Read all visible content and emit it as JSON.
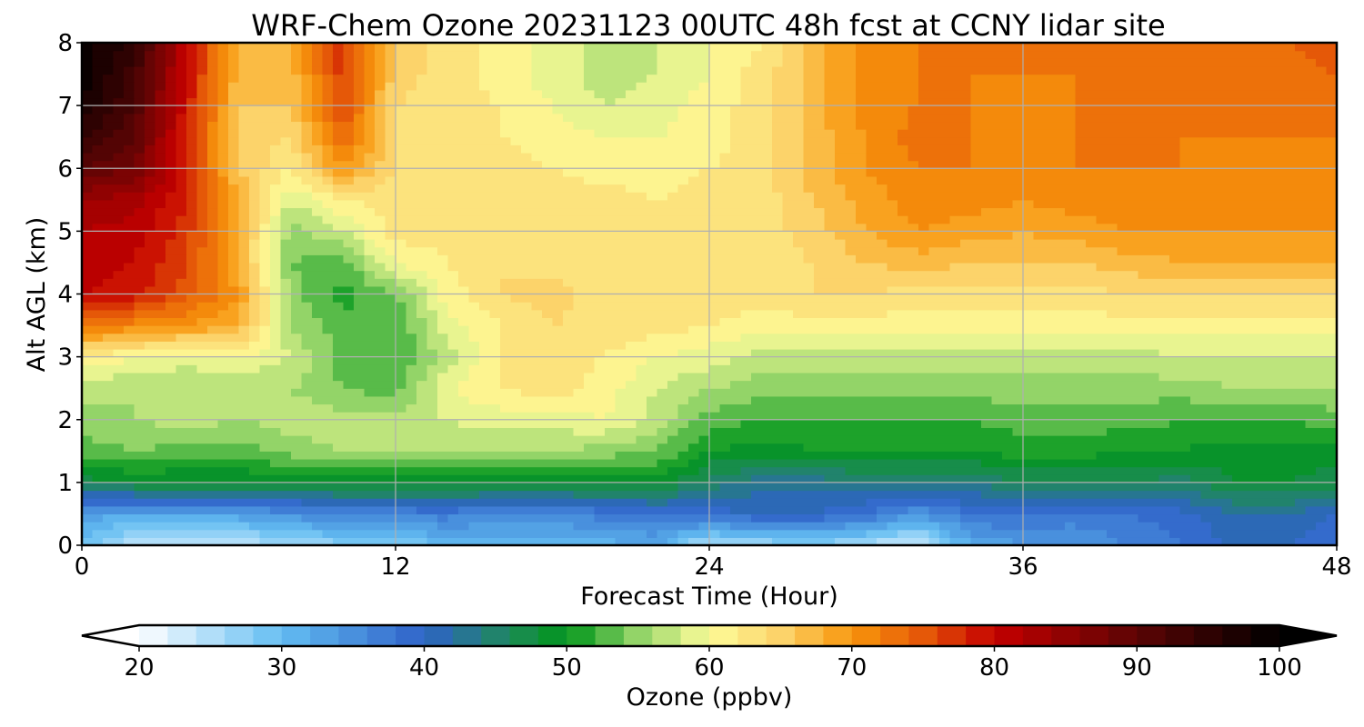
{
  "chart_data": {
    "type": "heatmap",
    "title": "WRF-Chem Ozone  20231123 00UTC 48h fcst at CCNY lidar site",
    "xlabel": "Forecast Time (Hour)",
    "ylabel": "Alt AGL (km)",
    "xlim": [
      0,
      48
    ],
    "ylim": [
      0,
      8
    ],
    "xticks": [
      0,
      12,
      24,
      36,
      48
    ],
    "yticks": [
      0,
      1,
      2,
      3,
      4,
      5,
      6,
      7,
      8
    ],
    "grid": true,
    "colorbar": {
      "label": "Ozone  (ppbv)",
      "range": [
        20,
        100
      ],
      "ticks": [
        20,
        30,
        40,
        50,
        60,
        70,
        80,
        90,
        100
      ],
      "extend": "both",
      "stops": [
        {
          "v": 20,
          "c": "#ffffff"
        },
        {
          "v": 30,
          "c": "#63bdf2"
        },
        {
          "v": 40,
          "c": "#2f62c8"
        },
        {
          "v": 46,
          "c": "#1e8a5a"
        },
        {
          "v": 50,
          "c": "#00961a"
        },
        {
          "v": 55,
          "c": "#93d468"
        },
        {
          "v": 60,
          "c": "#fdfc9a"
        },
        {
          "v": 65,
          "c": "#fcd36a"
        },
        {
          "v": 70,
          "c": "#f8960c"
        },
        {
          "v": 75,
          "c": "#e55808"
        },
        {
          "v": 80,
          "c": "#c40000"
        },
        {
          "v": 90,
          "c": "#5c0404"
        },
        {
          "v": 100,
          "c": "#000000"
        }
      ]
    },
    "x": [
      0,
      2,
      4,
      6,
      8,
      10,
      12,
      14,
      16,
      18,
      20,
      22,
      24,
      26,
      28,
      30,
      32,
      34,
      36,
      38,
      40,
      42,
      44,
      46,
      48
    ],
    "y": [
      0,
      0.5,
      1,
      1.5,
      2,
      2.5,
      3,
      3.5,
      4,
      4.5,
      5,
      5.5,
      6,
      6.5,
      7,
      7.5,
      8
    ],
    "z": [
      [
        29,
        24,
        25,
        24,
        26,
        27,
        28,
        30,
        31,
        31,
        31,
        32,
        24,
        26,
        27,
        25,
        23,
        32,
        34,
        34,
        36,
        38,
        40,
        40,
        38
      ],
      [
        33,
        32,
        33,
        33,
        35,
        36,
        36,
        37,
        35,
        35,
        37,
        38,
        39,
        40,
        40,
        38,
        34,
        38,
        38,
        37,
        38,
        39,
        42,
        42,
        40
      ],
      [
        47,
        48,
        48,
        48,
        48,
        49,
        49,
        49,
        49,
        49,
        49,
        49,
        45,
        43,
        43,
        44,
        44,
        44,
        46,
        46,
        46,
        45,
        48,
        48,
        47
      ],
      [
        53,
        54,
        53,
        53,
        55,
        56,
        56,
        57,
        56,
        56,
        55,
        54,
        50,
        49,
        50,
        50,
        50,
        50,
        51,
        51,
        50,
        50,
        49,
        49,
        49
      ],
      [
        55,
        56,
        57,
        56,
        57,
        57,
        57,
        58,
        59,
        59,
        60,
        57,
        53,
        52,
        52,
        52,
        52,
        52,
        53,
        53,
        53,
        52,
        52,
        52,
        53
      ],
      [
        57,
        56,
        56,
        56,
        56,
        54,
        53,
        60,
        62,
        63,
        61,
        58,
        56,
        55,
        55,
        55,
        55,
        55,
        55,
        55,
        55,
        55,
        56,
        56,
        56
      ],
      [
        62,
        60,
        59,
        60,
        58,
        53,
        52,
        57,
        62,
        63,
        62,
        60,
        59,
        57,
        57,
        57,
        57,
        57,
        57,
        57,
        57,
        58,
        58,
        58,
        58
      ],
      [
        73,
        71,
        70,
        68,
        56,
        53,
        52,
        59,
        62,
        64,
        63,
        63,
        62,
        61,
        61,
        61,
        61,
        61,
        61,
        61,
        61,
        61,
        61,
        61,
        61
      ],
      [
        80,
        79,
        75,
        70,
        55,
        51,
        54,
        61,
        64,
        65,
        63,
        64,
        63,
        63,
        64,
        64,
        63,
        63,
        63,
        63,
        64,
        64,
        64,
        64,
        64
      ],
      [
        81,
        80,
        76,
        68,
        54,
        53,
        60,
        62,
        64,
        63,
        63,
        63,
        63,
        63,
        64,
        66,
        67,
        66,
        66,
        66,
        67,
        68,
        68,
        68,
        68
      ],
      [
        82,
        81,
        77,
        68,
        55,
        58,
        63,
        63,
        63,
        63,
        63,
        63,
        63,
        63,
        65,
        68,
        70,
        69,
        68,
        69,
        70,
        70,
        70,
        70,
        70
      ],
      [
        84,
        83,
        78,
        68,
        58,
        62,
        63,
        63,
        63,
        63,
        63,
        62,
        63,
        63,
        66,
        69,
        71,
        71,
        70,
        71,
        71,
        71,
        71,
        71,
        71
      ],
      [
        90,
        88,
        78,
        66,
        62,
        70,
        64,
        63,
        63,
        62,
        61,
        61,
        62,
        63,
        67,
        70,
        72,
        72,
        71,
        72,
        72,
        72,
        71,
        71,
        71
      ],
      [
        94,
        90,
        78,
        65,
        64,
        74,
        64,
        63,
        62,
        61,
        60,
        60,
        61,
        63,
        67,
        70,
        73,
        72,
        71,
        72,
        73,
        72,
        72,
        72,
        72
      ],
      [
        98,
        92,
        79,
        66,
        66,
        76,
        64,
        63,
        62,
        60,
        58,
        59,
        61,
        63,
        67,
        71,
        72,
        72,
        71,
        72,
        72,
        72,
        72,
        72,
        72
      ],
      [
        99,
        93,
        80,
        67,
        67,
        77,
        65,
        63,
        61,
        59,
        57,
        58,
        60,
        63,
        67,
        71,
        72,
        72,
        72,
        72,
        73,
        73,
        73,
        73,
        74
      ],
      [
        99,
        95,
        80,
        68,
        67,
        77,
        66,
        63,
        61,
        59,
        57,
        58,
        60,
        62,
        67,
        71,
        72,
        72,
        72,
        72,
        73,
        73,
        74,
        74,
        75
      ]
    ]
  }
}
